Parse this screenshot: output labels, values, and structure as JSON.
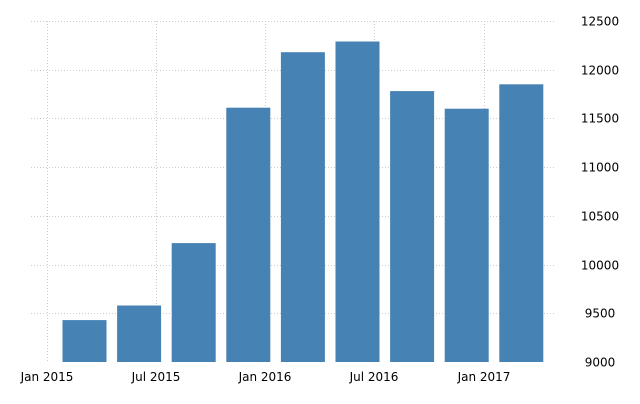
{
  "chart_data": {
    "type": "bar",
    "title": "",
    "xlabel": "",
    "ylabel": "",
    "categories": [
      "Q1 2015",
      "Q2 2015",
      "Q3 2015",
      "Q4 2015",
      "Q1 2016",
      "Q2 2016",
      "Q3 2016",
      "Q4 2016",
      "Q1 2017"
    ],
    "values": [
      9430,
      9580,
      10220,
      11610,
      12180,
      12290,
      11780,
      11600,
      11850
    ],
    "ylim": [
      9000,
      12500
    ],
    "yticks": [
      9000,
      9500,
      10000,
      10500,
      11000,
      11500,
      12000,
      12500
    ],
    "ytick_labels": [
      "9000",
      "9500",
      "10000",
      "10500",
      "11000",
      "11500",
      "12000",
      "12500"
    ],
    "xticks": [
      "Jan 2015",
      "Jul 2015",
      "Jan 2016",
      "Jul 2016",
      "Jan 2017"
    ],
    "yaxis_position": "right",
    "grid": true,
    "grid_style": "dotted",
    "bar_color": "#4682b4",
    "grid_color": "#cccccc"
  }
}
